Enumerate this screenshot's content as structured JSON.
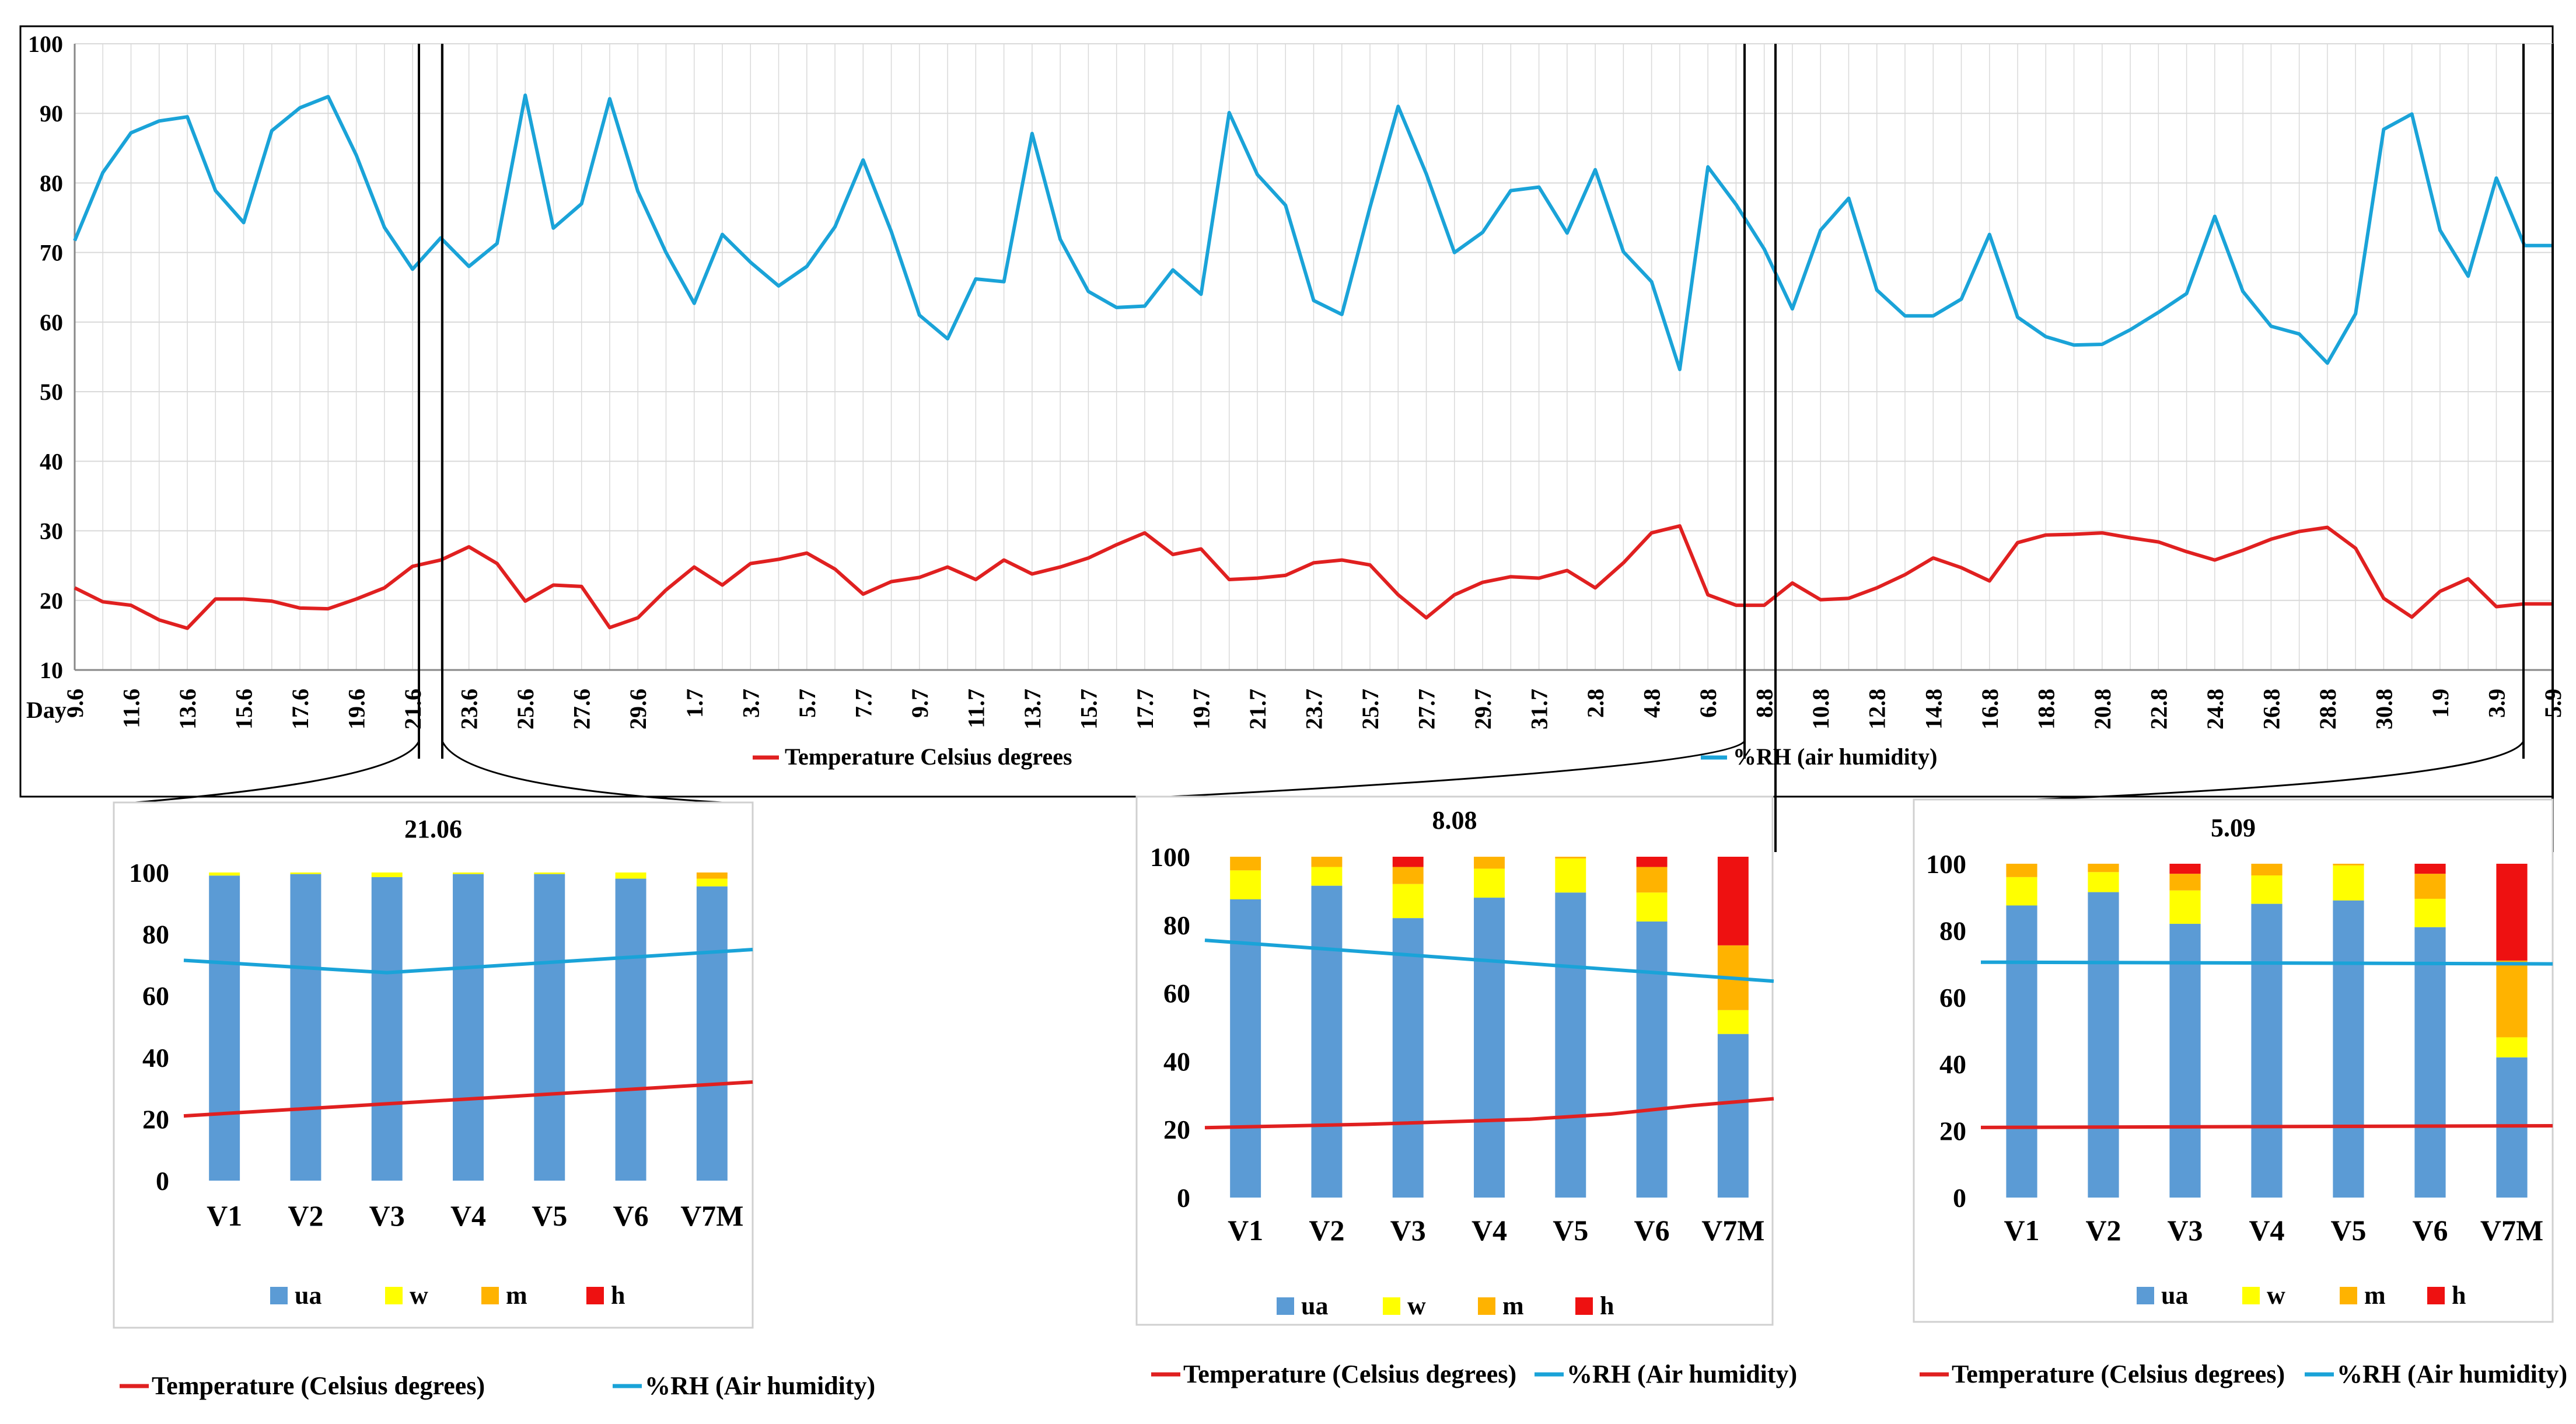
{
  "colors": {
    "temperature": "#E02020",
    "humidity": "#1AA3D8",
    "ua": "#5B9BD5",
    "w": "#FFFF00",
    "m": "#FFB300",
    "h": "#EE1111",
    "grid": "#D9D9D9"
  },
  "chart_data": [
    {
      "type": "line",
      "title": "",
      "xlabel": "Day",
      "ylabel": "",
      "ylim": [
        10,
        100
      ],
      "yticks": [
        10,
        20,
        30,
        40,
        50,
        60,
        70,
        80,
        90,
        100
      ],
      "grid": true,
      "legend_position": "bottom",
      "x": [
        "9.6",
        "10.6",
        "11.6",
        "12.6",
        "13.6",
        "14.6",
        "15.6",
        "16.6",
        "17.6",
        "18.6",
        "19.6",
        "20.6",
        "21.6",
        "22.6",
        "23.6",
        "24.6",
        "25.6",
        "26.6",
        "27.6",
        "28.6",
        "29.6",
        "30.6",
        "1.7",
        "2.7",
        "3.7",
        "4.7",
        "5.7",
        "6.7",
        "7.7",
        "8.7",
        "9.7",
        "10.7",
        "11.7",
        "12.7",
        "13.7",
        "14.7",
        "15.7",
        "16.7",
        "17.7",
        "18.7",
        "19.7",
        "20.7",
        "21.7",
        "22.7",
        "23.7",
        "24.7",
        "25.7",
        "26.7",
        "27.7",
        "28.7",
        "29.7",
        "30.7",
        "31.7",
        "1.8",
        "2.8",
        "3.8",
        "4.8",
        "5.8",
        "6.8",
        "7.8",
        "8.8",
        "9.8",
        "10.8",
        "11.8",
        "12.8",
        "13.8",
        "14.8",
        "15.8",
        "16.8",
        "17.8",
        "18.8",
        "19.8",
        "20.8",
        "21.8",
        "22.8",
        "23.8",
        "24.8",
        "25.8",
        "26.8",
        "27.8",
        "28.8",
        "29.8",
        "30.8",
        "31.8",
        "1.9",
        "2.9",
        "3.9",
        "4.9",
        "5.9"
      ],
      "x_tick_labels": [
        "9.6",
        "11.6",
        "13.6",
        "15.6",
        "17.6",
        "19.6",
        "21.6",
        "23.6",
        "25.6",
        "27.6",
        "29.6",
        "1.7",
        "3.7",
        "5.7",
        "7.7",
        "9.7",
        "11.7",
        "13.7",
        "15.7",
        "17.7",
        "19.7",
        "21.7",
        "23.7",
        "25.7",
        "27.7",
        "29.7",
        "31.7",
        "2.8",
        "4.8",
        "6.8",
        "8.8",
        "10.8",
        "12.8",
        "14.8",
        "16.8",
        "18.8",
        "20.8",
        "22.8",
        "24.8",
        "26.8",
        "28.8",
        "30.8",
        "1.9",
        "3.9",
        "5.9"
      ],
      "highlighted_days": [
        "21.6",
        "8.8",
        "5.9"
      ],
      "series": [
        {
          "name": "Temperature Celsius degrees",
          "color_key": "temperature",
          "values": [
            21.8,
            19.8,
            19.3,
            17.2,
            16,
            20.2,
            20.2,
            19.9,
            18.9,
            18.8,
            20.2,
            21.8,
            24.9,
            25.8,
            27.7,
            25.3,
            19.9,
            22.2,
            22,
            16.1,
            17.5,
            21.5,
            24.8,
            22.2,
            25.3,
            25.9,
            26.8,
            24.5,
            20.9,
            22.7,
            23.3,
            24.8,
            23,
            25.8,
            23.8,
            24.8,
            26.1,
            28,
            29.7,
            26.6,
            27.4,
            23,
            23.2,
            23.6,
            25.4,
            25.8,
            25.1,
            20.8,
            17.5,
            20.8,
            22.6,
            23.4,
            23.2,
            24.3,
            21.8,
            25.4,
            29.7,
            30.7,
            20.8,
            19.3,
            19.3,
            22.5,
            20.1,
            20.3,
            21.8,
            23.7,
            26.1,
            24.7,
            22.8,
            28.3,
            29.4,
            29.5,
            29.7,
            29,
            28.4,
            27,
            25.8,
            27.2,
            28.8,
            29.9,
            30.5,
            27.5,
            20.3,
            17.6,
            21.3,
            23.1,
            19.1,
            19.5,
            19.5
          ]
        },
        {
          "name": "%RH (air humidity)",
          "color_key": "humidity",
          "values": [
            71.7,
            81.5,
            87.2,
            88.9,
            89.5,
            78.9,
            74.3,
            87.5,
            90.8,
            92.4,
            84,
            73.6,
            67.6,
            72.1,
            68,
            71.3,
            92.6,
            73.5,
            77,
            92.1,
            78.8,
            70,
            62.7,
            72.6,
            68.6,
            65.2,
            68,
            73.7,
            83.3,
            73,
            61,
            57.6,
            66.2,
            65.8,
            87.1,
            71.9,
            64.4,
            62.1,
            62.3,
            67.5,
            64,
            90.1,
            81.2,
            76.8,
            63.1,
            61.1,
            76.5,
            91,
            81.3,
            70,
            72.9,
            78.9,
            79.4,
            72.8,
            81.9,
            70.1,
            65.8,
            53.2,
            82.3,
            76.9,
            70.5,
            61.9,
            73.2,
            77.8,
            64.6,
            60.9,
            60.9,
            63.3,
            72.6,
            60.7,
            57.9,
            56.7,
            56.8,
            58.9,
            61.4,
            64.1,
            75.2,
            64.4,
            59.4,
            58.3,
            54.1,
            61.2,
            87.7,
            89.9,
            73.2,
            66.6,
            80.7,
            71,
            71
          ]
        }
      ]
    },
    {
      "type": "bar",
      "stacked": true,
      "title": "21.06",
      "categories": [
        "V1",
        "V2",
        "V3",
        "V4",
        "V5",
        "V6",
        "V7M"
      ],
      "ylim": [
        0,
        100
      ],
      "yticks": [
        0,
        20,
        40,
        60,
        80,
        100
      ],
      "grid": false,
      "legend_position": "bottom",
      "series": [
        {
          "name": "ua",
          "color_key": "ua",
          "values": [
            99,
            99.5,
            98.5,
            99.5,
            99.5,
            98,
            95.5
          ]
        },
        {
          "name": "w",
          "color_key": "w",
          "values": [
            1,
            0.5,
            1.5,
            0.5,
            0.5,
            2,
            2.5
          ]
        },
        {
          "name": "m",
          "color_key": "m",
          "values": [
            0,
            0,
            0,
            0,
            0,
            0,
            2
          ]
        },
        {
          "name": "h",
          "color_key": "h",
          "values": [
            0,
            0,
            0,
            0,
            0,
            0,
            0
          ]
        }
      ],
      "lines": [
        {
          "name": "Temperature (Celsius degrees)",
          "color_key": "temperature",
          "points": [
            [
              0.0,
              21
            ],
            [
              7.0,
              32
            ]
          ]
        },
        {
          "name": "%RH (Air humidity)",
          "color_key": "humidity",
          "points": [
            [
              0.0,
              71.5
            ],
            [
              2.5,
              67.5
            ],
            [
              7.0,
              75
            ]
          ]
        }
      ]
    },
    {
      "type": "bar",
      "stacked": true,
      "title": "8.08",
      "categories": [
        "V1",
        "V2",
        "V3",
        "V4",
        "V5",
        "V6",
        "V7M"
      ],
      "ylim": [
        0,
        100
      ],
      "yticks": [
        0,
        20,
        40,
        60,
        80,
        100
      ],
      "grid": false,
      "legend_position": "bottom",
      "series": [
        {
          "name": "ua",
          "color_key": "ua",
          "values": [
            87.5,
            91.5,
            82,
            88,
            89.5,
            81,
            48
          ]
        },
        {
          "name": "w",
          "color_key": "w",
          "values": [
            8.5,
            5.5,
            10,
            8.5,
            10,
            8.5,
            7
          ]
        },
        {
          "name": "m",
          "color_key": "m",
          "values": [
            4,
            3,
            5,
            3.5,
            0.5,
            7.5,
            19
          ]
        },
        {
          "name": "h",
          "color_key": "h",
          "values": [
            0,
            0,
            3,
            0,
            0,
            3,
            26
          ]
        }
      ],
      "lines": [
        {
          "name": "Temperature (Celsius degrees)",
          "color_key": "temperature",
          "points": [
            [
              0.0,
              20.5
            ],
            [
              2.0,
              21.5
            ],
            [
              4.0,
              23
            ],
            [
              5.0,
              24.5
            ],
            [
              6.0,
              27
            ],
            [
              7.0,
              29
            ]
          ]
        },
        {
          "name": "%RH (Air humidity)",
          "color_key": "humidity",
          "points": [
            [
              0.0,
              75.5
            ],
            [
              7.0,
              63.5
            ]
          ]
        }
      ]
    },
    {
      "type": "bar",
      "stacked": true,
      "title": "5.09",
      "categories": [
        "V1",
        "V2",
        "V3",
        "V4",
        "V5",
        "V6",
        "V7M"
      ],
      "ylim": [
        0,
        100
      ],
      "yticks": [
        0,
        20,
        40,
        60,
        80,
        100
      ],
      "grid": false,
      "legend_position": "bottom",
      "series": [
        {
          "name": "ua",
          "color_key": "ua",
          "values": [
            87.5,
            91.5,
            82,
            88,
            89,
            81,
            42
          ]
        },
        {
          "name": "w",
          "color_key": "w",
          "values": [
            8.5,
            6,
            10,
            8.5,
            10.5,
            8.5,
            6
          ]
        },
        {
          "name": "m",
          "color_key": "m",
          "values": [
            4,
            2.5,
            5,
            3.5,
            0.5,
            7.5,
            23
          ]
        },
        {
          "name": "h",
          "color_key": "h",
          "values": [
            0,
            0,
            3,
            0,
            0,
            3,
            29
          ]
        }
      ],
      "lines": [
        {
          "name": "Temperature (Celsius degrees)",
          "color_key": "temperature",
          "points": [
            [
              0.0,
              21
            ],
            [
              7.0,
              21.5
            ]
          ]
        },
        {
          "name": "%RH (Air humidity)",
          "color_key": "humidity",
          "points": [
            [
              0.0,
              70.5
            ],
            [
              7.0,
              70
            ]
          ]
        }
      ]
    }
  ]
}
